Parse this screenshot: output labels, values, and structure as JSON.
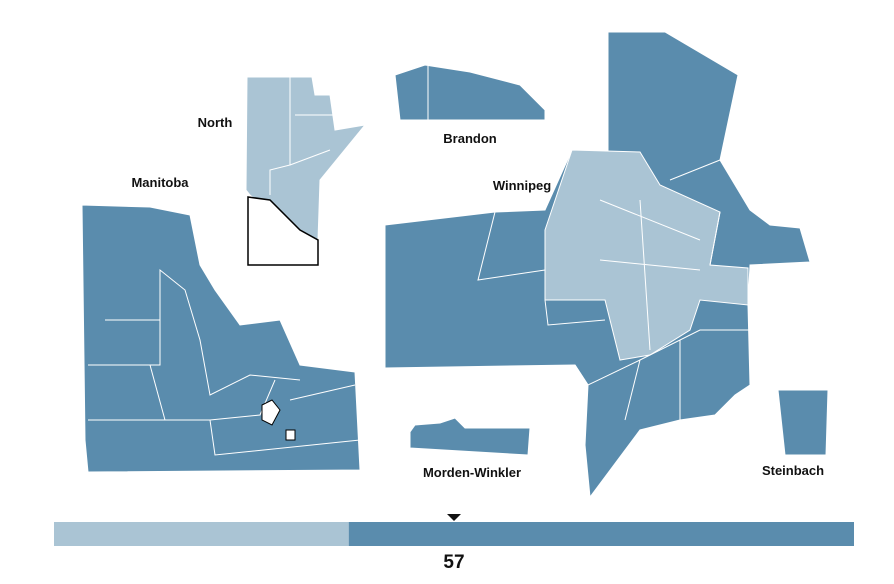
{
  "map": {
    "labels": [
      "North",
      "Manitoba",
      "Brandon",
      "Winnipeg",
      "Morden-Winkler",
      "Steinbach"
    ]
  },
  "seat_bar": {
    "total": 57,
    "segments": [
      {
        "color": "#aac4d4",
        "value": 21
      },
      {
        "color": "#5a8cad",
        "value": 36
      }
    ]
  }
}
